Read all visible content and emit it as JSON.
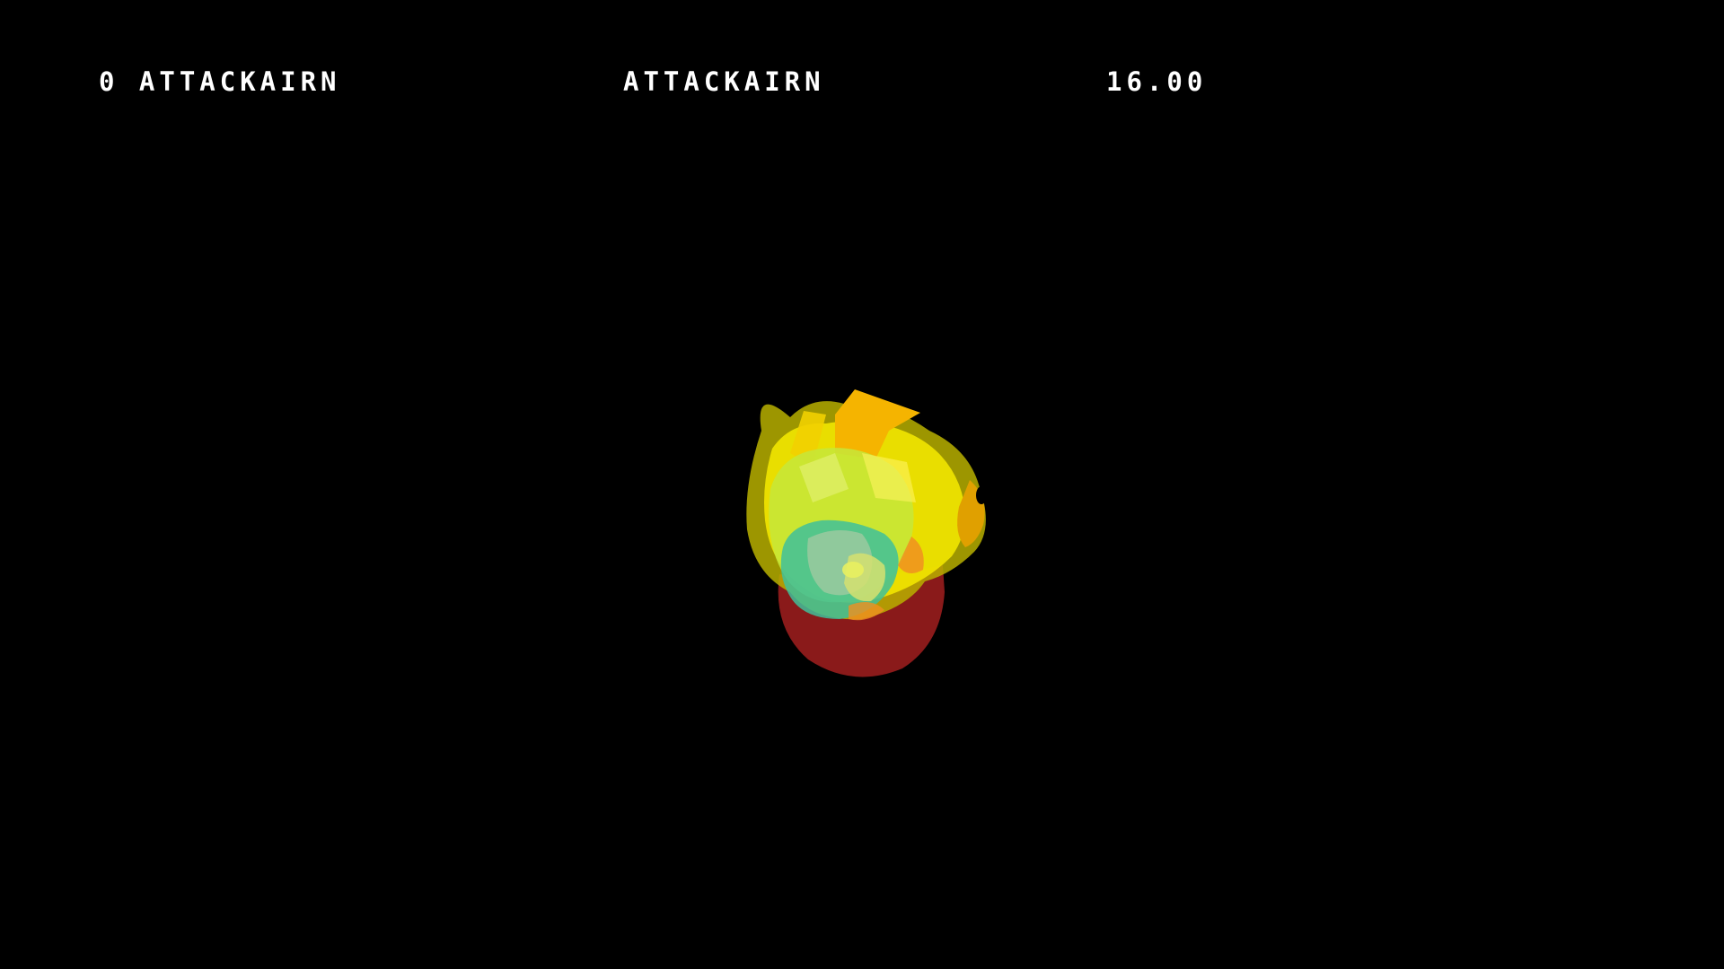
{
  "hud": {
    "score_label": "0 ATTACKAIRN",
    "name_label": "ATTACKAIRN",
    "timer": "16.00"
  },
  "colors": {
    "background": "#000000",
    "hud_text": "#ffffff",
    "base": "#8a1a1a",
    "yellow": "#f2e600",
    "yellow_dark": "#b8b000",
    "lime": "#c6e83a",
    "teal": "#3fbf9a",
    "orange": "#f5b400"
  },
  "object": {
    "icon": "crystalline-blob"
  }
}
